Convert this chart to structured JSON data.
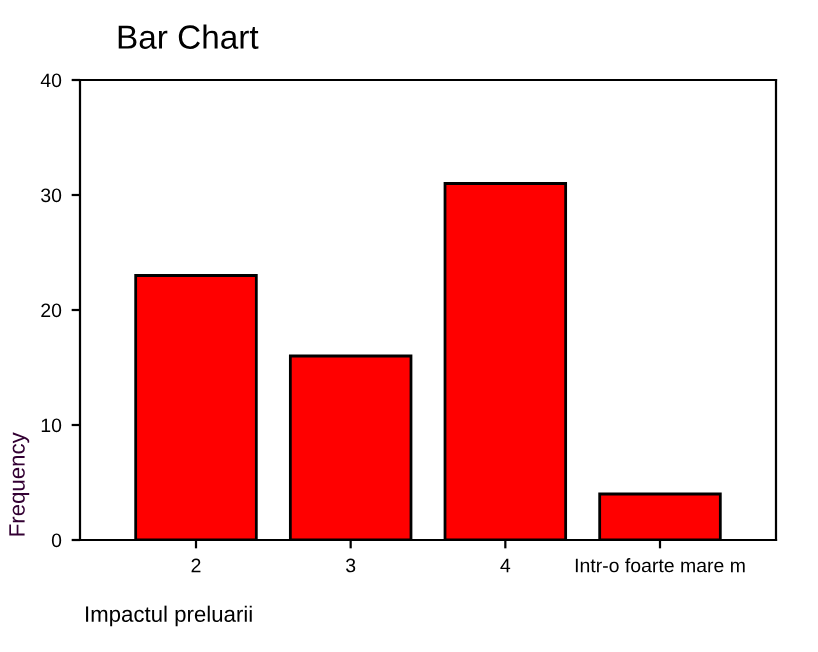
{
  "chart_data": {
    "type": "bar",
    "title": "Bar Chart",
    "xlabel": "Impactul preluarii",
    "ylabel": "Frequency",
    "categories": [
      "2",
      "3",
      "4",
      "Intr-o foarte mare m"
    ],
    "values": [
      23,
      16,
      31,
      4
    ],
    "color": "#ff0000",
    "ylim": [
      0,
      40
    ],
    "yticks": [
      0,
      10,
      20,
      30,
      40
    ],
    "grid": false,
    "legend": false
  }
}
